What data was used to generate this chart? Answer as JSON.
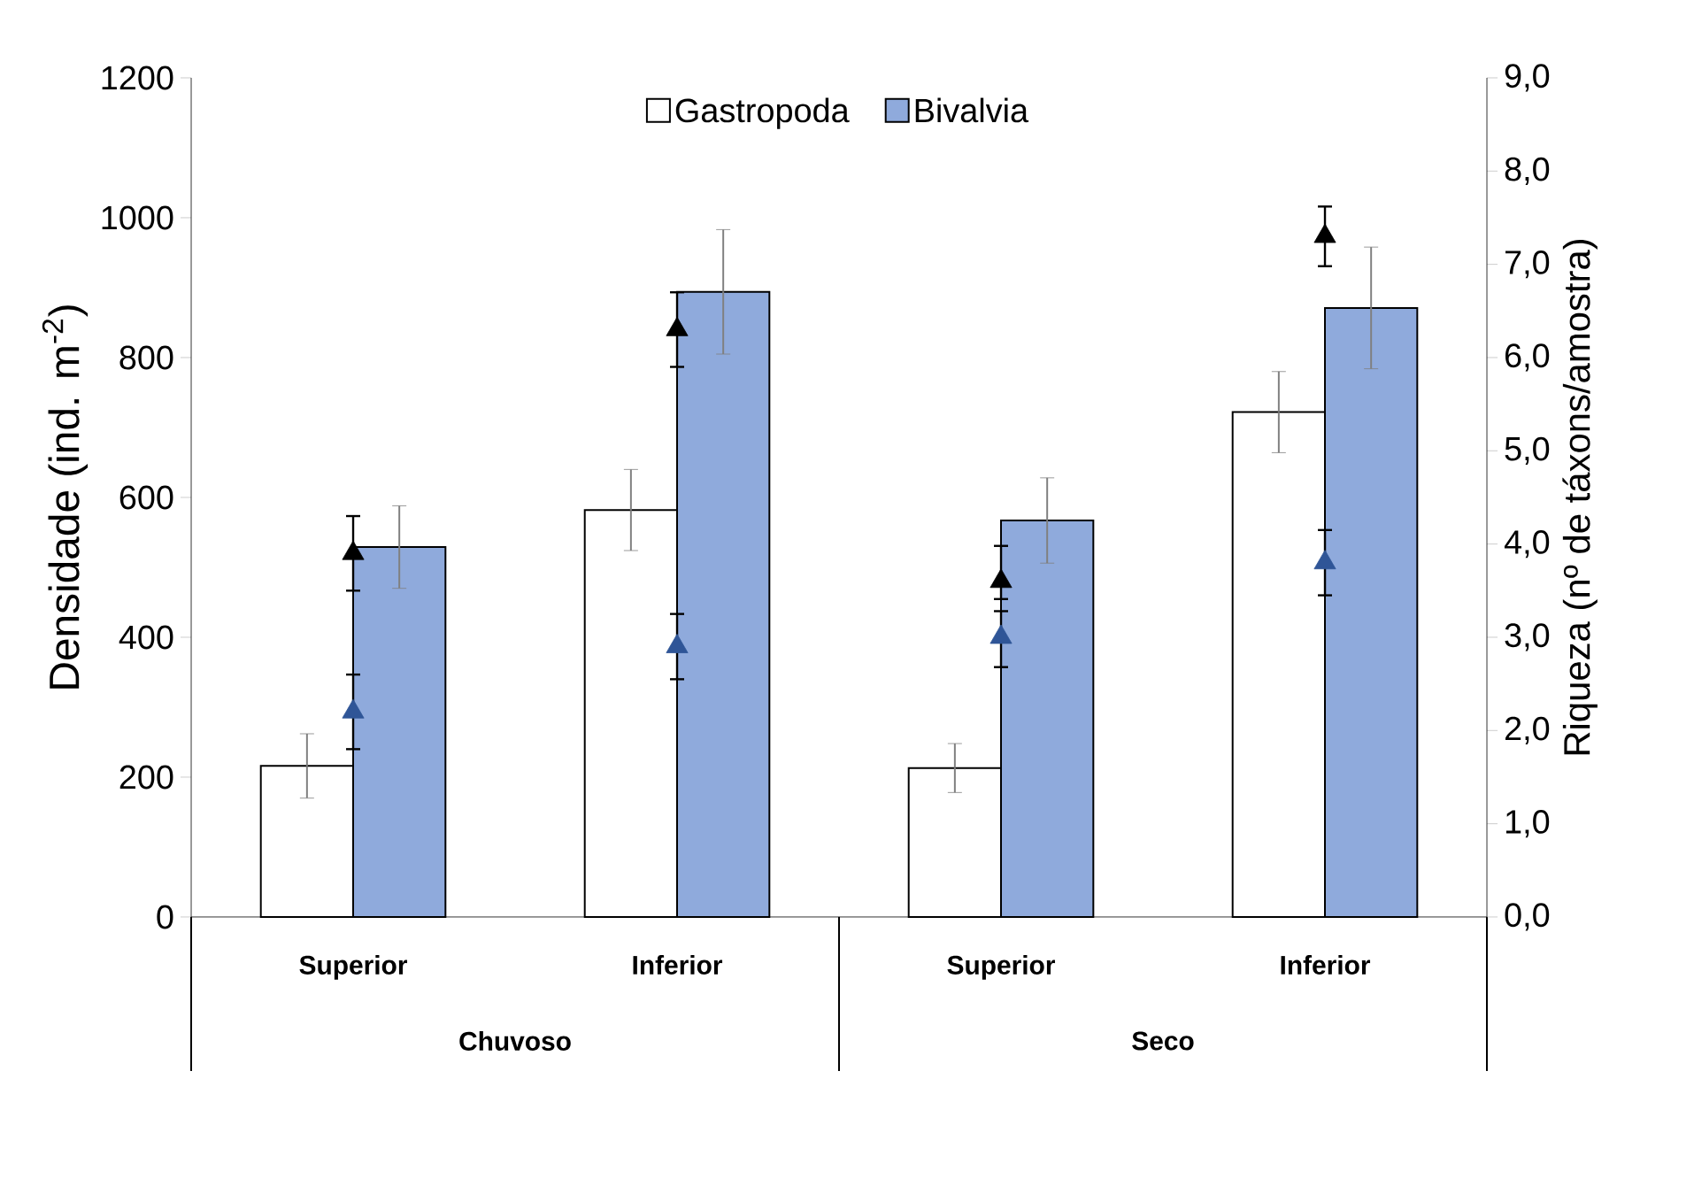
{
  "chart_data": {
    "type": "bar",
    "categories": [
      "Superior",
      "Inferior",
      "Superior",
      "Inferior"
    ],
    "ylabel": "Densidade (ind. m$^{-2}$)",
    "y2label": "Riqueza (nº de táxons/amostra)",
    "ylim": [
      0,
      1200
    ],
    "yticks": [
      0,
      200,
      400,
      600,
      800,
      1000,
      1200
    ],
    "y2lim": [
      0,
      9
    ],
    "y2ticks": [
      {
        "value": 0,
        "label": "0,0"
      },
      {
        "value": 1,
        "label": "1,0"
      },
      {
        "value": 2,
        "label": "2,0"
      },
      {
        "value": 3,
        "label": "3,0"
      },
      {
        "value": 4,
        "label": "4,0"
      },
      {
        "value": 5,
        "label": "5,0"
      },
      {
        "value": 6,
        "label": "6,0"
      },
      {
        "value": 7,
        "label": "7,0"
      },
      {
        "value": 8,
        "label": "8,0"
      },
      {
        "value": 9,
        "label": "9,0"
      }
    ],
    "legend": "top",
    "series": [
      {
        "name": "Gastropoda",
        "color": "#ffffff",
        "values": [
          216,
          582,
          213,
          722
        ],
        "errors": [
          46,
          58,
          35,
          58
        ]
      },
      {
        "name": "Bivalvia",
        "color": "#8faadc",
        "values": [
          529,
          894,
          567,
          871
        ],
        "errors": [
          59,
          89,
          61,
          87
        ]
      },
      {
        "type": "scatter",
        "axis": "y2",
        "marker": "triangle",
        "color": "#000000",
        "values": [
          3.9,
          6.3,
          3.6,
          7.3
        ],
        "errors": [
          0.4,
          0.4,
          [
            3.41,
            3.98
          ],
          0.32
        ]
      },
      {
        "type": "scatter",
        "axis": "y2",
        "marker": "triangle",
        "color": "#2f5597",
        "values": [
          2.2,
          2.9,
          3.0,
          3.8
        ],
        "errors": [
          0.4,
          0.35,
          [
            2.68,
            3.28
          ],
          0.35
        ]
      }
    ],
    "annotations": [
      "Chuvoso",
      "Seco"
    ]
  }
}
